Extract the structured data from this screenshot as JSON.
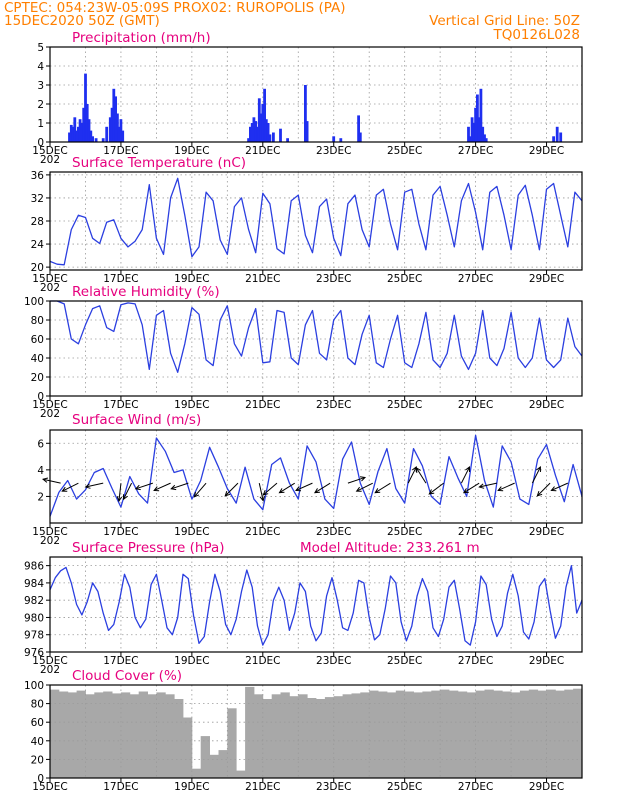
{
  "header": {
    "line1": "CPTEC:   054:23W-05:09S   PROX02: RUROPOLIS (PA)",
    "line2": "15DEC2020 50Z (GMT)",
    "grid_note": "Vertical Grid Line: 50Z",
    "code": "TQ0126L028"
  },
  "model_altitude": "Model Altitude: 233.261 m",
  "x_axis": {
    "start_day": 15,
    "end_day": 30,
    "labeled_days": [
      15,
      17,
      19,
      21,
      23,
      25,
      27,
      29
    ],
    "labels": [
      "15DEC",
      "17DEC",
      "19DEC",
      "21DEC",
      "23DEC",
      "25DEC",
      "27DEC",
      "29DEC"
    ],
    "year_stub": "202"
  },
  "colors": {
    "header": "#ff7f00",
    "panel_title": "#e6007e",
    "line": "#2b3fe0",
    "bar": "#1f2ff0",
    "cloud": "#a8a8a8",
    "grid": "#9a9a9a",
    "wind_arrow": "#000000"
  },
  "chart_data": [
    {
      "id": "precip",
      "type": "bar",
      "title": "Precipitation (mm/h)",
      "ylim": [
        0,
        5
      ],
      "yticks": [
        0,
        1,
        2,
        3,
        4,
        5
      ],
      "grid": true,
      "x": [
        15.55,
        15.6,
        15.65,
        15.7,
        15.75,
        15.8,
        15.85,
        15.9,
        15.95,
        16.0,
        16.05,
        16.1,
        16.15,
        16.2,
        16.3,
        16.5,
        16.6,
        16.7,
        16.75,
        16.8,
        16.85,
        16.9,
        16.95,
        17.0,
        17.05,
        20.6,
        20.65,
        20.7,
        20.75,
        20.8,
        20.85,
        20.9,
        20.95,
        21.0,
        21.05,
        21.1,
        21.15,
        21.2,
        21.3,
        21.5,
        21.7,
        22.2,
        22.25,
        23.0,
        23.2,
        23.7,
        23.75,
        26.8,
        26.85,
        26.9,
        26.95,
        27.0,
        27.05,
        27.1,
        27.15,
        27.2,
        27.25,
        27.3,
        29.2,
        29.3,
        29.4
      ],
      "values": [
        0.5,
        0.9,
        0.8,
        1.3,
        0.6,
        0.8,
        1.2,
        1.0,
        1.8,
        3.6,
        2.0,
        1.2,
        0.6,
        0.3,
        0.2,
        0.2,
        0.8,
        1.3,
        1.8,
        2.8,
        2.4,
        1.5,
        0.8,
        1.2,
        0.6,
        0.2,
        0.8,
        1.0,
        1.3,
        1.1,
        0.8,
        2.3,
        1.5,
        2.0,
        2.8,
        1.2,
        1.0,
        0.4,
        0.5,
        0.7,
        0.2,
        3.0,
        1.1,
        0.3,
        0.2,
        1.4,
        0.5,
        0.8,
        0.3,
        1.3,
        1.0,
        1.8,
        2.5,
        1.3,
        2.8,
        0.8,
        0.4,
        0.2,
        0.3,
        0.8,
        0.5
      ]
    },
    {
      "id": "temp",
      "type": "line",
      "title": "Surface Temperature (nC)",
      "ylim": [
        19.5,
        36.5
      ],
      "yticks": [
        20,
        24,
        28,
        32,
        36
      ],
      "tick_labels": [
        "20",
        "24",
        "28",
        "32",
        "36"
      ],
      "grid": true,
      "x": [
        15.0,
        15.2,
        15.4,
        15.6,
        15.8,
        16.0,
        16.2,
        16.4,
        16.6,
        16.8,
        17.0,
        17.2,
        17.4,
        17.6,
        17.8,
        18.0,
        18.2,
        18.4,
        18.6,
        18.8,
        19.0,
        19.2,
        19.4,
        19.6,
        19.8,
        20.0,
        20.2,
        20.4,
        20.6,
        20.8,
        21.0,
        21.2,
        21.4,
        21.6,
        21.8,
        22.0,
        22.2,
        22.4,
        22.6,
        22.8,
        23.0,
        23.2,
        23.4,
        23.6,
        23.8,
        24.0,
        24.2,
        24.4,
        24.6,
        24.8,
        25.0,
        25.2,
        25.4,
        25.6,
        25.8,
        26.0,
        26.2,
        26.4,
        26.6,
        26.8,
        27.0,
        27.2,
        27.4,
        27.6,
        27.8,
        28.0,
        28.2,
        28.4,
        28.6,
        28.8,
        29.0,
        29.2,
        29.4,
        29.6,
        29.8,
        30.0
      ],
      "values": [
        21.0,
        20.5,
        20.4,
        26.5,
        29.0,
        28.6,
        25.0,
        24.1,
        27.8,
        28.2,
        25.0,
        23.5,
        24.5,
        26.5,
        34.3,
        25.0,
        22.2,
        32.0,
        35.4,
        29.0,
        21.8,
        23.5,
        33.0,
        31.5,
        24.7,
        22.2,
        30.5,
        32.0,
        26.5,
        22.5,
        32.8,
        31.0,
        23.2,
        22.3,
        31.5,
        32.5,
        25.5,
        22.5,
        30.5,
        31.8,
        25.0,
        22.0,
        31.0,
        32.5,
        26.5,
        23.5,
        32.5,
        33.5,
        27.5,
        23.0,
        33.0,
        33.5,
        27.5,
        23.0,
        32.5,
        34.0,
        29.0,
        23.5,
        31.5,
        34.5,
        29.5,
        23.0,
        33.0,
        34.0,
        29.0,
        23.0,
        32.5,
        34.2,
        29.0,
        23.0,
        33.5,
        34.5,
        29.0,
        23.5,
        33.0,
        31.5
      ]
    },
    {
      "id": "rh",
      "type": "line",
      "title": "Relative Humidity (%)",
      "ylim": [
        0,
        100
      ],
      "yticks": [
        0,
        20,
        40,
        60,
        80,
        100
      ],
      "tick_labels": [
        "0",
        "20",
        "40",
        "60",
        "80",
        "100"
      ],
      "grid": true,
      "x": [
        15.0,
        15.2,
        15.4,
        15.6,
        15.8,
        16.0,
        16.2,
        16.4,
        16.6,
        16.8,
        17.0,
        17.2,
        17.4,
        17.6,
        17.8,
        18.0,
        18.2,
        18.4,
        18.6,
        18.8,
        19.0,
        19.2,
        19.4,
        19.6,
        19.8,
        20.0,
        20.2,
        20.4,
        20.6,
        20.8,
        21.0,
        21.2,
        21.4,
        21.6,
        21.8,
        22.0,
        22.2,
        22.4,
        22.6,
        22.8,
        23.0,
        23.2,
        23.4,
        23.6,
        23.8,
        24.0,
        24.2,
        24.4,
        24.6,
        24.8,
        25.0,
        25.2,
        25.4,
        25.6,
        25.8,
        26.0,
        26.2,
        26.4,
        26.6,
        26.8,
        27.0,
        27.2,
        27.4,
        27.6,
        27.8,
        28.0,
        28.2,
        28.4,
        28.6,
        28.8,
        29.0,
        29.2,
        29.4,
        29.6,
        29.8,
        30.0
      ],
      "values": [
        100,
        100,
        97,
        60,
        55,
        75,
        92,
        95,
        72,
        68,
        96,
        98,
        97,
        75,
        28,
        85,
        90,
        45,
        25,
        55,
        93,
        86,
        38,
        32,
        80,
        95,
        55,
        42,
        72,
        92,
        35,
        36,
        90,
        88,
        40,
        33,
        75,
        90,
        45,
        38,
        80,
        90,
        40,
        33,
        65,
        85,
        35,
        30,
        60,
        85,
        35,
        30,
        55,
        88,
        38,
        30,
        45,
        85,
        42,
        28,
        45,
        90,
        40,
        32,
        50,
        88,
        40,
        30,
        40,
        82,
        38,
        30,
        38,
        82,
        52,
        42
      ]
    },
    {
      "id": "wind",
      "type": "line",
      "title": "Surface Wind (m/s)",
      "ylim": [
        0,
        7
      ],
      "yticks": [
        2,
        4,
        6
      ],
      "tick_labels": [
        "2",
        "4",
        "6"
      ],
      "grid": true,
      "x": [
        15.0,
        15.25,
        15.5,
        15.75,
        16.0,
        16.25,
        16.5,
        16.75,
        17.0,
        17.25,
        17.5,
        17.75,
        18.0,
        18.25,
        18.5,
        18.75,
        19.0,
        19.25,
        19.5,
        19.75,
        20.0,
        20.25,
        20.5,
        20.75,
        21.0,
        21.25,
        21.5,
        21.75,
        22.0,
        22.25,
        22.5,
        22.75,
        23.0,
        23.25,
        23.5,
        23.75,
        24.0,
        24.25,
        24.5,
        24.75,
        25.0,
        25.25,
        25.5,
        25.75,
        26.0,
        26.25,
        26.5,
        26.75,
        27.0,
        27.25,
        27.5,
        27.75,
        28.0,
        28.25,
        28.5,
        28.75,
        29.0,
        29.25,
        29.5,
        29.75,
        30.0
      ],
      "values": [
        0.5,
        2.3,
        3.2,
        1.8,
        2.5,
        3.8,
        4.1,
        2.6,
        1.2,
        3.5,
        2.2,
        1.5,
        6.4,
        5.4,
        3.8,
        4.0,
        1.8,
        3.2,
        5.7,
        4.2,
        2.6,
        1.5,
        4.2,
        1.8,
        1.0,
        4.4,
        4.9,
        3.0,
        1.8,
        5.8,
        4.6,
        1.8,
        1.1,
        4.8,
        6.1,
        3.0,
        1.4,
        3.9,
        5.6,
        2.6,
        1.5,
        5.6,
        4.3,
        2.0,
        1.4,
        5.0,
        3.4,
        2.0,
        6.6,
        3.2,
        1.2,
        5.8,
        4.6,
        1.8,
        1.4,
        4.8,
        5.9,
        3.6,
        1.6,
        4.4,
        2.0
      ],
      "vectors_t": [
        15.3,
        15.8,
        16.5,
        17.0,
        17.3,
        17.9,
        18.4,
        18.9,
        19.4,
        20.3,
        20.9,
        21.4,
        21.9,
        22.4,
        22.9,
        23.4,
        24.1,
        24.6,
        25.1,
        25.6,
        26.1,
        26.6,
        27.1,
        27.6,
        28.1,
        28.6,
        29.1,
        29.6
      ],
      "vectors_dx": [
        -0.9,
        -0.6,
        -0.9,
        -0.1,
        -0.4,
        -0.9,
        -0.9,
        -0.9,
        -0.6,
        -0.7,
        0.2,
        -0.7,
        -0.8,
        -0.9,
        -0.8,
        0.9,
        -0.8,
        -0.8,
        0.4,
        -0.5,
        -0.8,
        0.4,
        -0.8,
        -0.9,
        -0.9,
        0.4,
        -0.7,
        -0.9
      ],
      "vectors_dy": [
        0.2,
        -0.3,
        -0.2,
        -0.9,
        -0.8,
        -0.3,
        -0.4,
        -0.3,
        -0.7,
        -0.7,
        -0.9,
        -0.6,
        -0.5,
        -0.4,
        -0.5,
        0.3,
        -0.4,
        -0.5,
        0.8,
        0.8,
        -0.6,
        0.8,
        -0.5,
        -0.2,
        -0.4,
        0.8,
        -0.7,
        -0.4
      ]
    },
    {
      "id": "pres",
      "type": "line",
      "title": "Surface Pressure (hPa)",
      "ylim": [
        976,
        987
      ],
      "yticks": [
        976,
        978,
        980,
        982,
        984,
        986
      ],
      "tick_labels": [
        "976",
        "978",
        "980",
        "982",
        "984",
        "986"
      ],
      "grid": true,
      "x": [
        15.0,
        15.15,
        15.3,
        15.45,
        15.6,
        15.75,
        15.9,
        16.05,
        16.2,
        16.35,
        16.5,
        16.65,
        16.8,
        16.95,
        17.1,
        17.25,
        17.4,
        17.55,
        17.7,
        17.85,
        18.0,
        18.15,
        18.3,
        18.45,
        18.6,
        18.75,
        18.9,
        19.05,
        19.2,
        19.35,
        19.5,
        19.65,
        19.8,
        19.95,
        20.1,
        20.25,
        20.4,
        20.55,
        20.7,
        20.85,
        21.0,
        21.15,
        21.3,
        21.45,
        21.6,
        21.75,
        21.9,
        22.05,
        22.2,
        22.35,
        22.5,
        22.65,
        22.8,
        22.95,
        23.1,
        23.25,
        23.4,
        23.55,
        23.7,
        23.85,
        24.0,
        24.15,
        24.3,
        24.45,
        24.6,
        24.75,
        24.9,
        25.05,
        25.2,
        25.35,
        25.5,
        25.65,
        25.8,
        25.95,
        26.1,
        26.25,
        26.4,
        26.55,
        26.7,
        26.85,
        27.0,
        27.15,
        27.3,
        27.45,
        27.6,
        27.75,
        27.9,
        28.05,
        28.2,
        28.35,
        28.5,
        28.65,
        28.8,
        28.95,
        29.1,
        29.25,
        29.4,
        29.55,
        29.7,
        29.85,
        30.0
      ],
      "values": [
        983.2,
        984.6,
        985.4,
        985.8,
        984.0,
        981.5,
        980.3,
        981.8,
        984.0,
        983.0,
        980.5,
        978.5,
        979.2,
        981.8,
        985.0,
        983.5,
        980.0,
        978.8,
        979.8,
        983.8,
        985.0,
        982.0,
        978.8,
        978.0,
        980.0,
        985.0,
        984.5,
        980.2,
        977.0,
        977.8,
        981.8,
        985.0,
        983.0,
        979.2,
        978.0,
        979.8,
        983.0,
        985.5,
        983.5,
        979.0,
        976.8,
        978.0,
        982.0,
        983.5,
        982.0,
        978.5,
        980.5,
        984.0,
        983.0,
        979.0,
        977.3,
        978.2,
        982.5,
        984.6,
        982.0,
        978.8,
        978.5,
        980.5,
        984.3,
        984.0,
        980.0,
        977.4,
        978.0,
        981.0,
        984.8,
        984.0,
        979.5,
        977.3,
        979.0,
        982.5,
        984.5,
        983.0,
        978.8,
        977.8,
        979.8,
        983.5,
        984.3,
        981.0,
        977.3,
        976.8,
        979.5,
        984.8,
        983.8,
        979.8,
        977.8,
        979.0,
        982.8,
        985.0,
        982.5,
        978.3,
        977.5,
        979.5,
        983.6,
        984.5,
        980.8,
        977.6,
        979.0,
        983.5,
        986.0,
        980.5,
        982.0
      ]
    },
    {
      "id": "cloud",
      "type": "bar",
      "title": "Cloud Cover (%)",
      "ylim": [
        0,
        100
      ],
      "yticks": [
        0,
        20,
        40,
        60,
        80,
        100
      ],
      "tick_labels": [
        "0",
        "20",
        "40",
        "60",
        "80",
        "100"
      ],
      "grid": true,
      "x": [
        15.0,
        15.25,
        15.5,
        15.75,
        16.0,
        16.25,
        16.5,
        16.75,
        17.0,
        17.25,
        17.5,
        17.75,
        18.0,
        18.25,
        18.5,
        18.75,
        19.0,
        19.25,
        19.5,
        19.75,
        20.0,
        20.25,
        20.5,
        20.75,
        21.0,
        21.25,
        21.5,
        21.75,
        22.0,
        22.25,
        22.5,
        22.75,
        23.0,
        23.25,
        23.5,
        23.75,
        24.0,
        24.25,
        24.5,
        24.75,
        25.0,
        25.25,
        25.5,
        25.75,
        26.0,
        26.25,
        26.5,
        26.75,
        27.0,
        27.25,
        27.5,
        27.75,
        28.0,
        28.25,
        28.5,
        28.75,
        29.0,
        29.25,
        29.5,
        29.75
      ],
      "values": [
        95,
        93,
        92,
        94,
        90,
        92,
        93,
        91,
        92,
        90,
        93,
        90,
        92,
        90,
        85,
        65,
        10,
        45,
        25,
        30,
        75,
        8,
        98,
        90,
        85,
        90,
        92,
        88,
        90,
        86,
        85,
        87,
        88,
        90,
        91,
        92,
        94,
        93,
        92,
        94,
        93,
        92,
        93,
        94,
        95,
        94,
        93,
        92,
        94,
        95,
        94,
        93,
        92,
        94,
        95,
        94,
        95,
        94,
        95,
        96
      ]
    }
  ],
  "panel_titles": {
    "precip": "Precipitation (mm/h)",
    "temp": "Surface Temperature (nC)",
    "rh": "Relative Humidity (%)",
    "wind": "Surface Wind (m/s)",
    "pres": "Surface Pressure (hPa)",
    "cloud": "Cloud Cover (%)"
  },
  "precip_tick_labels": [
    "0",
    "1",
    "2",
    "3",
    "4",
    "5"
  ]
}
